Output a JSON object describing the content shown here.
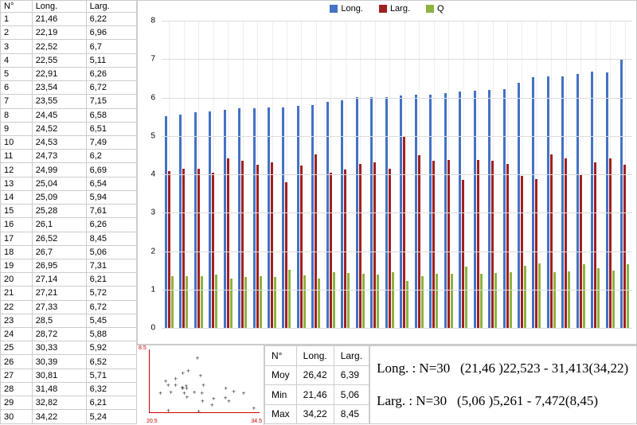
{
  "table": {
    "headers": [
      "N°",
      "Long.",
      "Larg."
    ],
    "rows": [
      [
        1,
        "21,46",
        "6,22"
      ],
      [
        2,
        "22,19",
        "6,96"
      ],
      [
        3,
        "22,52",
        "6,7"
      ],
      [
        4,
        "22,55",
        "5,11"
      ],
      [
        5,
        "22,91",
        "6,26"
      ],
      [
        6,
        "23,54",
        "6,72"
      ],
      [
        7,
        "23,55",
        "7,15"
      ],
      [
        8,
        "24,45",
        "6,58"
      ],
      [
        9,
        "24,52",
        "6,51"
      ],
      [
        10,
        "24,53",
        "7,49"
      ],
      [
        11,
        "24,73",
        "6,2"
      ],
      [
        12,
        "24,99",
        "6,69"
      ],
      [
        13,
        "25,04",
        "6,54"
      ],
      [
        14,
        "25,09",
        "5,94"
      ],
      [
        15,
        "25,28",
        "7,61"
      ],
      [
        16,
        "26,1",
        "6,26"
      ],
      [
        17,
        "26,52",
        "8,45"
      ],
      [
        18,
        "26,7",
        "5,06"
      ],
      [
        19,
        "26,95",
        "7,31"
      ],
      [
        20,
        "27,14",
        "6,21"
      ],
      [
        21,
        "27,21",
        "5,72"
      ],
      [
        22,
        "27,33",
        "6,72"
      ],
      [
        23,
        "28,5",
        "5,45"
      ],
      [
        24,
        "28,72",
        "5,88"
      ],
      [
        25,
        "30,33",
        "5,92"
      ],
      [
        26,
        "30,39",
        "6,52"
      ],
      [
        27,
        "30,81",
        "5,71"
      ],
      [
        28,
        "31,48",
        "6,32"
      ],
      [
        29,
        "32,82",
        "6,21"
      ],
      [
        30,
        "34,22",
        "5,24"
      ]
    ]
  },
  "chart": {
    "type": "bar",
    "series": [
      {
        "name": "Long.",
        "color": "#4472c4"
      },
      {
        "name": "Larg.",
        "color": "#a02020"
      },
      {
        "name": "Q",
        "color": "#8bb340"
      }
    ],
    "ylim": [
      0,
      8
    ],
    "ytick_step": 1,
    "background_color": "#ffffff",
    "grid_color": "#dddddd",
    "bars": [
      {
        "long": 5.52,
        "larg": 4.08,
        "q": 1.35
      },
      {
        "long": 5.55,
        "larg": 4.15,
        "q": 1.34
      },
      {
        "long": 5.62,
        "larg": 4.15,
        "q": 1.35
      },
      {
        "long": 5.63,
        "larg": 4.05,
        "q": 1.39
      },
      {
        "long": 5.68,
        "larg": 4.42,
        "q": 1.29
      },
      {
        "long": 5.72,
        "larg": 4.35,
        "q": 1.32
      },
      {
        "long": 5.72,
        "larg": 4.25,
        "q": 1.35
      },
      {
        "long": 5.75,
        "larg": 4.32,
        "q": 1.33
      },
      {
        "long": 5.75,
        "larg": 3.8,
        "q": 1.51
      },
      {
        "long": 5.78,
        "larg": 4.22,
        "q": 1.37
      },
      {
        "long": 5.8,
        "larg": 4.52,
        "q": 1.28
      },
      {
        "long": 5.88,
        "larg": 4.05,
        "q": 1.45
      },
      {
        "long": 5.92,
        "larg": 4.12,
        "q": 1.44
      },
      {
        "long": 6.02,
        "larg": 4.28,
        "q": 1.41
      },
      {
        "long": 6.02,
        "larg": 4.32,
        "q": 1.39
      },
      {
        "long": 6.02,
        "larg": 4.15,
        "q": 1.45
      },
      {
        "long": 6.05,
        "larg": 4.98,
        "q": 1.22
      },
      {
        "long": 6.08,
        "larg": 4.5,
        "q": 1.35
      },
      {
        "long": 6.08,
        "larg": 4.35,
        "q": 1.4
      },
      {
        "long": 6.12,
        "larg": 4.38,
        "q": 1.4
      },
      {
        "long": 6.15,
        "larg": 3.85,
        "q": 1.6
      },
      {
        "long": 6.18,
        "larg": 4.38,
        "q": 1.41
      },
      {
        "long": 6.2,
        "larg": 4.35,
        "q": 1.43
      },
      {
        "long": 6.22,
        "larg": 4.26,
        "q": 1.46
      },
      {
        "long": 6.38,
        "larg": 3.95,
        "q": 1.62
      },
      {
        "long": 6.52,
        "larg": 3.88,
        "q": 1.68
      },
      {
        "long": 6.55,
        "larg": 4.52,
        "q": 1.45
      },
      {
        "long": 6.55,
        "larg": 4.42,
        "q": 1.48
      },
      {
        "long": 6.62,
        "larg": 4.0,
        "q": 1.66
      },
      {
        "long": 6.68,
        "larg": 4.32,
        "q": 1.55
      },
      {
        "long": 6.65,
        "larg": 4.42,
        "q": 1.5
      },
      {
        "long": 7.0,
        "larg": 4.25,
        "q": 1.65
      }
    ]
  },
  "scatter": {
    "xlim": [
      20,
      35
    ],
    "ylim": [
      5,
      9
    ],
    "axis_color": "#cc0000",
    "points_from_table": true
  },
  "stats": {
    "headers": [
      "N°",
      "Long.",
      "Larg."
    ],
    "rows": [
      [
        "Moy",
        "26,42",
        "6,39"
      ],
      [
        "Min",
        "21,46",
        "5,06"
      ],
      [
        "Max",
        "34,22",
        "8,45"
      ]
    ]
  },
  "info": {
    "line1_label": "Long. : N=30",
    "line1_val": "(21,46 )22,523 - 31,413(34,22)",
    "line2_label": "Larg. : N=30",
    "line2_val": "(5,06 )5,261 - 7,472(8,45)"
  }
}
